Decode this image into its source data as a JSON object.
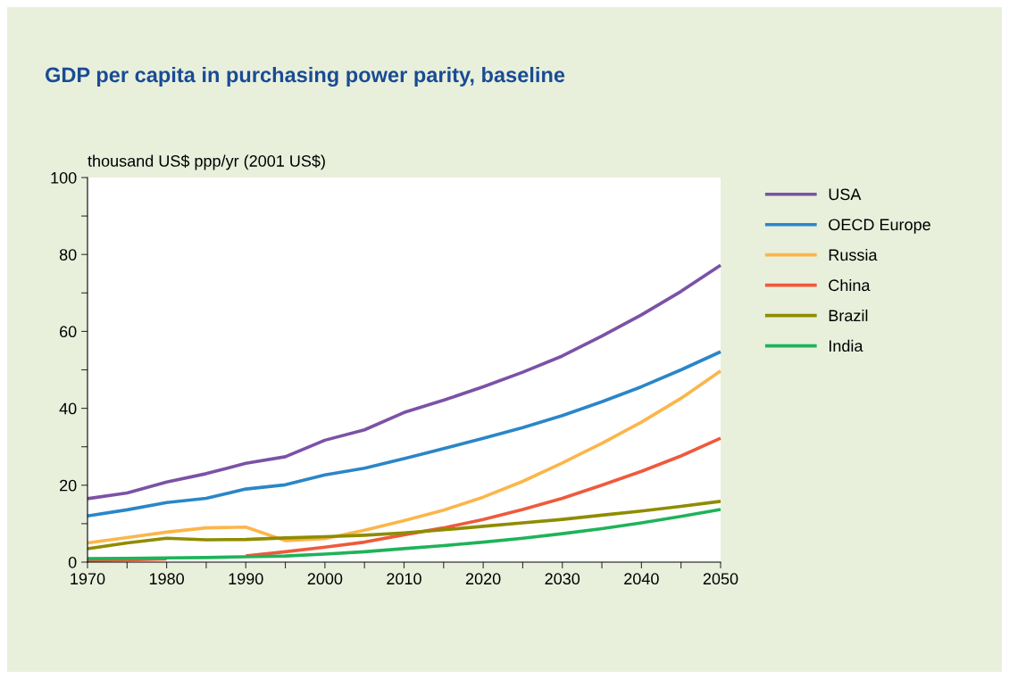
{
  "chart_data": {
    "type": "line",
    "title": "GDP per capita in purchasing power parity, baseline",
    "ylabel": "thousand US$ ppp/yr (2001 US$)",
    "x": [
      1970,
      1975,
      1980,
      1985,
      1990,
      1995,
      2000,
      2005,
      2010,
      2015,
      2020,
      2025,
      2030,
      2035,
      2040,
      2045,
      2050
    ],
    "series": [
      {
        "name": "USA",
        "color": "#7b52a6",
        "values": [
          16.5,
          18,
          20.8,
          23,
          25.7,
          27.4,
          31.7,
          34.4,
          38.9,
          42.1,
          45.6,
          49.4,
          53.6,
          58.8,
          64.3,
          70.4,
          77.2
        ]
      },
      {
        "name": "OECD Europe",
        "color": "#2a86c8",
        "values": [
          12,
          13.6,
          15.5,
          16.6,
          19,
          20.1,
          22.7,
          24.4,
          26.9,
          29.5,
          32.2,
          35,
          38.1,
          41.7,
          45.6,
          50,
          54.7
        ]
      },
      {
        "name": "Russia",
        "color": "#fbb64a",
        "values": [
          5,
          6.4,
          7.8,
          8.9,
          9.1,
          5.6,
          6.1,
          8.3,
          10.8,
          13.5,
          16.9,
          21,
          25.8,
          30.9,
          36.4,
          42.6,
          49.7
        ]
      },
      {
        "name": "China",
        "color": "#ee5a3c",
        "values": [
          0.4,
          0.6,
          0.8,
          null,
          1.6,
          2.7,
          3.9,
          5.2,
          7.1,
          8.9,
          11.1,
          13.7,
          16.6,
          20,
          23.6,
          27.6,
          32.2
        ]
      },
      {
        "name": "Brazil",
        "color": "#8f8c00",
        "values": [
          3.5,
          5,
          6.2,
          5.8,
          5.9,
          6.3,
          6.6,
          7,
          7.6,
          8.4,
          9.3,
          10.2,
          11.1,
          12.2,
          13.3,
          14.5,
          15.8
        ]
      },
      {
        "name": "India",
        "color": "#1fb35a",
        "values": [
          0.9,
          1,
          1.1,
          1.2,
          1.4,
          1.6,
          2.1,
          2.7,
          3.5,
          4.3,
          5.2,
          6.2,
          7.4,
          8.7,
          10.2,
          11.9,
          13.7
        ]
      }
    ],
    "xlim": [
      1970,
      2050
    ],
    "xticks": [
      1970,
      {
        "value": 1975,
        "label": null
      },
      1980,
      {
        "value": 1985,
        "label": null
      },
      1990,
      {
        "value": 1995,
        "label": null
      },
      2000,
      {
        "value": 2005,
        "label": null
      },
      2010,
      {
        "value": 2015,
        "label": null
      },
      2020,
      {
        "value": 2025,
        "label": null
      },
      2030,
      {
        "value": 2035,
        "label": null
      },
      2040,
      {
        "value": 2045,
        "label": null
      },
      2050
    ],
    "ylim": [
      0,
      100
    ],
    "yticks": [
      0,
      {
        "value": 10,
        "label": null
      },
      20,
      {
        "value": 30,
        "label": null
      },
      40,
      {
        "value": 50,
        "label": null
      },
      60,
      {
        "value": 70,
        "label": null
      },
      80,
      {
        "value": 90,
        "label": null
      },
      100
    ],
    "grid": false,
    "legend": "right",
    "marker": "none",
    "line_style": "solid"
  }
}
